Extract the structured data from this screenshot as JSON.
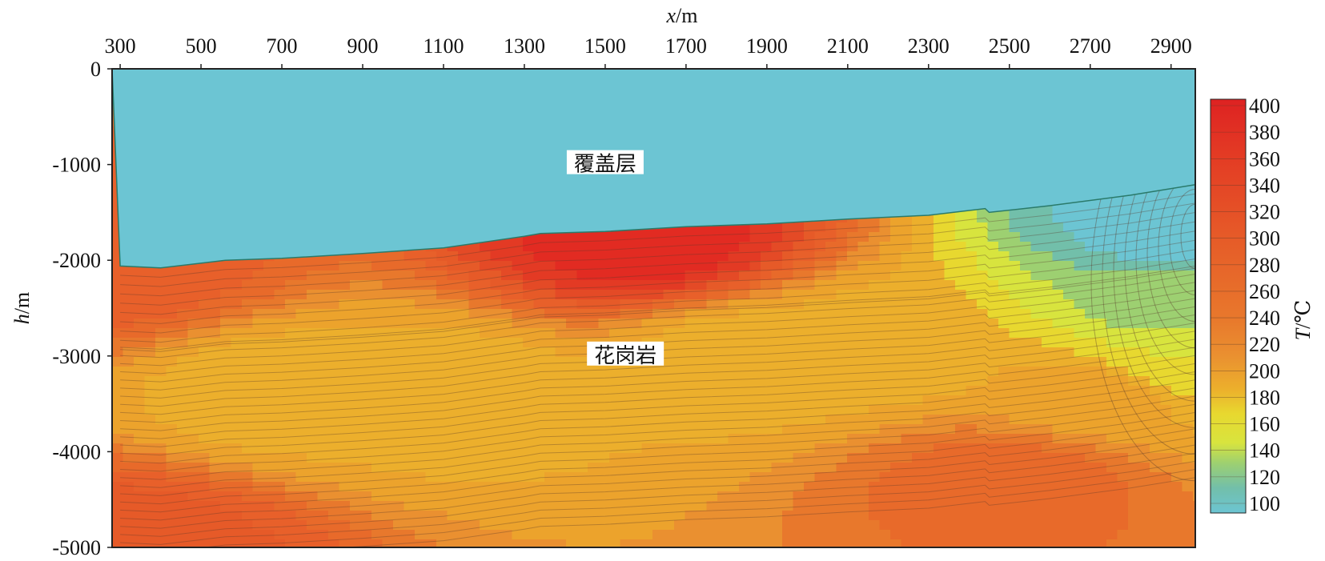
{
  "chart_data": {
    "type": "heatmap",
    "subtype": "filled-contour cross-section",
    "xlabel_italic": "x",
    "xlabel_unit": "/m",
    "ylabel_italic": "h",
    "ylabel_unit": "/m",
    "colorbar_label_italic": "T",
    "colorbar_label_unit": "/℃",
    "x_ticks": [
      300,
      500,
      700,
      900,
      1100,
      1300,
      1500,
      1700,
      1900,
      2100,
      2300,
      2500,
      2700,
      2900
    ],
    "y_ticks": [
      0,
      -1000,
      -2000,
      -3000,
      -4000,
      -5000
    ],
    "xlim": [
      280,
      2960
    ],
    "ylim": [
      -5000,
      0
    ],
    "colorbar_ticks": [
      400,
      380,
      360,
      340,
      320,
      300,
      280,
      260,
      240,
      220,
      200,
      180,
      160,
      140,
      120,
      100
    ],
    "colorbar_range": [
      100,
      400
    ],
    "contour_interval": 20,
    "colors": {
      "cover_layer": "#6cc5d3",
      "t100": "#6cc5d3",
      "t120": "#72bfaa",
      "t140": "#9dd071",
      "t160": "#d8e43e",
      "t180": "#e8d82f",
      "t200": "#ecaf2c",
      "t220": "#eca32c",
      "t240": "#ea9030",
      "t260": "#e8782c",
      "t280": "#e86a2a",
      "t300": "#e8602a",
      "t320": "#e65a28",
      "t340": "#e44a26",
      "t360": "#e33a24",
      "t380": "#e22b22",
      "t400": "#de2222"
    },
    "cover_boundary": [
      {
        "x": 300,
        "h": -2060
      },
      {
        "x": 400,
        "h": -2080
      },
      {
        "x": 560,
        "h": -2000
      },
      {
        "x": 700,
        "h": -1980
      },
      {
        "x": 900,
        "h": -1930
      },
      {
        "x": 1100,
        "h": -1870
      },
      {
        "x": 1300,
        "h": -1750
      },
      {
        "x": 1340,
        "h": -1720
      },
      {
        "x": 1500,
        "h": -1700
      },
      {
        "x": 1700,
        "h": -1650
      },
      {
        "x": 1900,
        "h": -1620
      },
      {
        "x": 2100,
        "h": -1570
      },
      {
        "x": 2300,
        "h": -1530
      },
      {
        "x": 2440,
        "h": -1460
      },
      {
        "x": 2450,
        "h": -1500
      },
      {
        "x": 2600,
        "h": -1430
      },
      {
        "x": 2800,
        "h": -1320
      },
      {
        "x": 2960,
        "h": -1210
      }
    ],
    "temperature_field_description_points": [
      {
        "x": 300,
        "h": -2100,
        "T": 300
      },
      {
        "x": 1600,
        "h": -1800,
        "T": 380
      },
      {
        "x": 1100,
        "h": -3350,
        "T": 200
      },
      {
        "x": 700,
        "h": -3350,
        "T": 200
      },
      {
        "x": 1850,
        "h": -3000,
        "T": 200
      },
      {
        "x": 2200,
        "h": -2900,
        "T": 200
      },
      {
        "x": 300,
        "h": -5000,
        "T": 320
      },
      {
        "x": 2500,
        "h": -4300,
        "T": 280
      },
      {
        "x": 2920,
        "h": -1650,
        "T": 100
      },
      {
        "x": 2900,
        "h": -2500,
        "T": 140
      },
      {
        "x": 2900,
        "h": -3000,
        "T": 170
      },
      {
        "x": 2700,
        "h": -3400,
        "T": 220
      }
    ],
    "annotations": [
      {
        "text": "覆盖层",
        "x": 1500,
        "h": -1000
      },
      {
        "text": "花岗岩",
        "x": 1550,
        "h": -3000
      }
    ]
  }
}
